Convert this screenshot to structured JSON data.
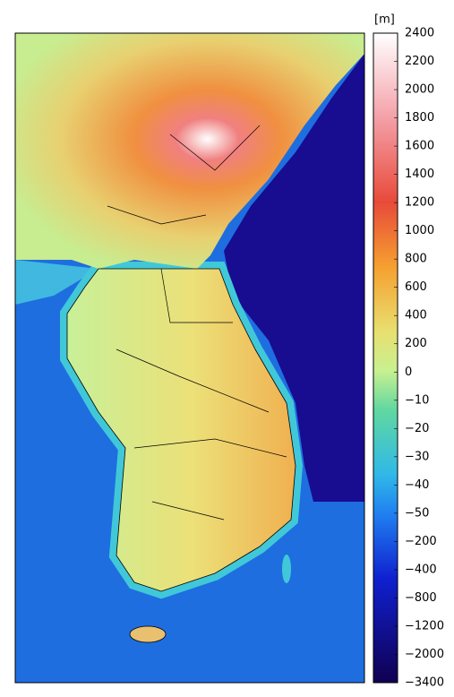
{
  "colorbar": {
    "unit": "[m]",
    "labels": [
      "2400",
      "2200",
      "2000",
      "1800",
      "1600",
      "1400",
      "1200",
      "1000",
      "800",
      "600",
      "400",
      "200",
      "0",
      "−10",
      "−20",
      "−30",
      "−40",
      "−50",
      "−200",
      "−400",
      "−800",
      "−1200",
      "−2000",
      "−3400"
    ]
  }
}
